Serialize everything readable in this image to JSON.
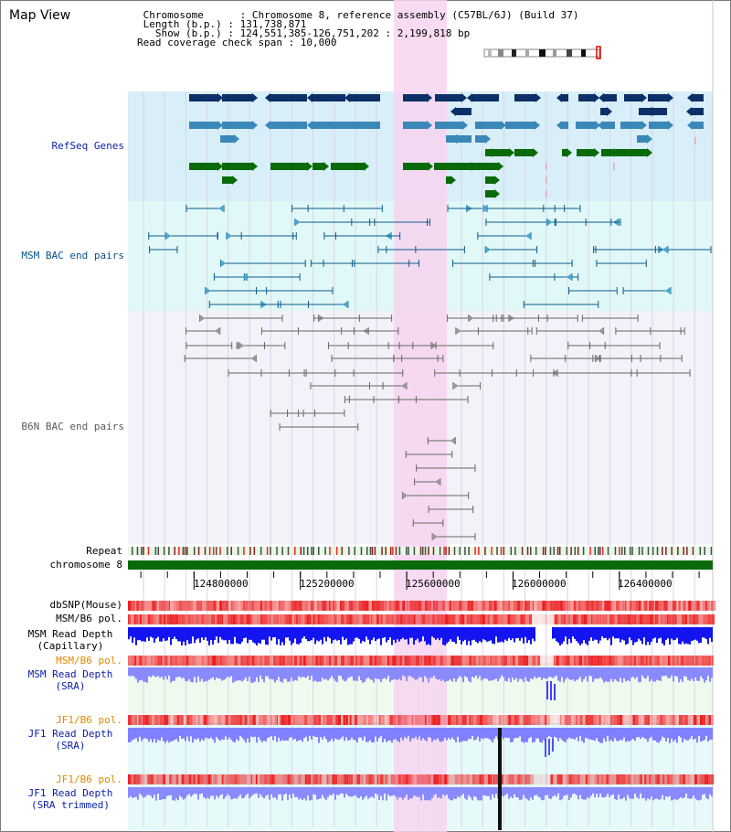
{
  "page": {
    "title": "Map View"
  },
  "info": {
    "lines": [
      " Chromosome      : Chromosome 8, reference assembly (C57BL/6J) (Build 37)",
      " Length (b.p.) : 131,738,871",
      "   Show (b.p.) : 124,551,385-126,751,202 : 2,199,818 bp",
      "Read coverage check span : 10,000"
    ]
  },
  "axis": {
    "start": 124551385,
    "end": 126751202,
    "ticks": [
      "124800000",
      "125200000",
      "125600000",
      "126000000",
      "126400000"
    ],
    "tick_values": [
      124800000,
      125200000,
      125600000,
      126000000,
      126400000
    ]
  },
  "highlight": {
    "start": 125551385,
    "end": 125751385,
    "color": "#f7d5f0"
  },
  "tracks": {
    "refseq": {
      "label": "RefSeq Genes",
      "color": "#0a1da8",
      "bg": "#d8eef8"
    },
    "msm_bac": {
      "label": "MSM BAC end pairs",
      "color": "#0b4f8a",
      "bg": "#e1f8f8"
    },
    "b6n_bac": {
      "label": "B6N BAC end pairs",
      "color": "#5a5a5a",
      "bg": "#f2f2f8"
    },
    "repeat": {
      "label": "Repeat"
    },
    "chromosome": {
      "label": "chromosome 8",
      "color": "#0a6a0a"
    },
    "dbsnp": {
      "label": "dbSNP(Mouse)"
    },
    "msm_b6_pol_1": {
      "label": "MSM/B6 pol."
    },
    "msm_read_depth_cap": {
      "label": "MSM Read Depth\n(Capillary)"
    },
    "msm_b6_pol_2": {
      "label": "MSM/B6 pol.",
      "color": "#e08a00"
    },
    "msm_read_depth_sra": {
      "label": "MSM Read Depth\n(SRA)",
      "color": "#0a1da8"
    },
    "jf1_b6_pol_1": {
      "label": "JF1/B6 pol.",
      "color": "#e08a00"
    },
    "jf1_read_depth_sra": {
      "label": "JF1 Read Depth\n(SRA)",
      "color": "#0a1da8"
    },
    "jf1_b6_pol_2": {
      "label": "JF1/B6 pol.",
      "color": "#e08a00"
    },
    "jf1_read_depth_trim": {
      "label": "JF1 Read Depth\n(SRA trimmed)",
      "color": "#0a1da8"
    }
  }
}
